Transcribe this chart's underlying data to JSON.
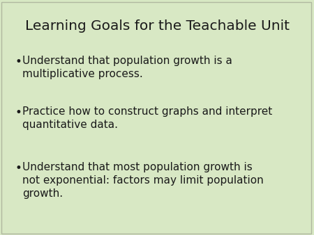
{
  "title": "Learning Goals for the Teachable Unit",
  "background_color": "#d8e8c4",
  "title_color": "#1a1a1a",
  "text_color": "#1a1a1a",
  "title_fontsize": 14.5,
  "bullet_fontsize": 11,
  "bullets": [
    "Understand that population growth is a\nmultiplicative process.",
    "Practice how to construct graphs and interpret\nquantitative data.",
    "Understand that most population growth is\nnot exponential: factors may limit population\ngrowth."
  ],
  "border_color": "#b0b8a0",
  "figsize": [
    4.5,
    3.38
  ],
  "dpi": 100
}
